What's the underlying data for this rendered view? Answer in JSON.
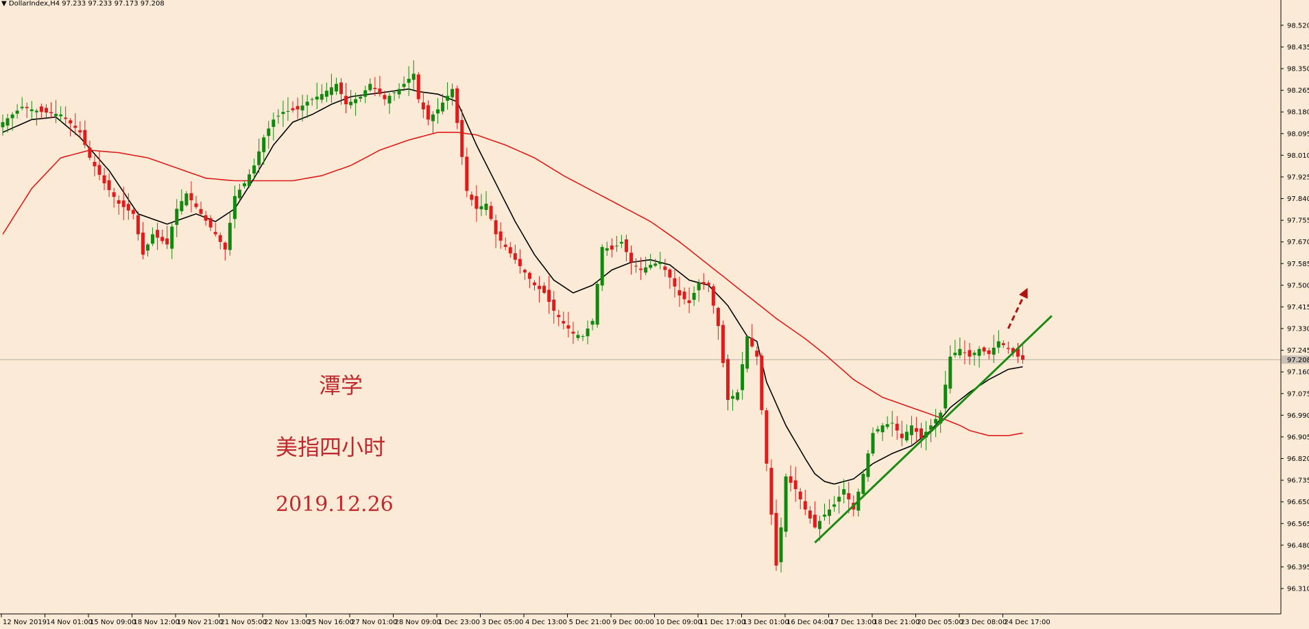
{
  "header": {
    "symbol_line": "▼ DollarIndex,H4  97.233 97.233 97.173 97.208"
  },
  "annotations": {
    "author": "潭学",
    "subtitle": "美指四小时",
    "date": "2019.12.26"
  },
  "colors": {
    "background": "#fbebd6",
    "bull": "#11890f",
    "bear": "#e11b1b",
    "ma_fast": "#000000",
    "ma_slow": "#e01a1a",
    "trendline": "#1a8a12",
    "arrow": "#b01010",
    "annotation_text": "#c0282d"
  },
  "chart_data": {
    "type": "candlestick",
    "symbol": "DollarIndex",
    "timeframe": "H4",
    "current_price": "97.208",
    "y_ticks": [
      "98.520",
      "98.435",
      "98.350",
      "98.265",
      "98.180",
      "98.095",
      "98.010",
      "97.925",
      "97.840",
      "97.755",
      "97.670",
      "97.585",
      "97.500",
      "97.415",
      "97.330",
      "97.245",
      "97.160",
      "97.075",
      "96.990",
      "96.905",
      "96.820",
      "96.735",
      "96.650",
      "96.565",
      "96.480",
      "96.395",
      "96.310"
    ],
    "ylim": [
      96.31,
      98.56
    ],
    "x_ticks": [
      "12 Nov 2019",
      "14 Nov 01:00",
      "15 Nov 09:00",
      "18 Nov 12:00",
      "19 Nov 21:00",
      "21 Nov 05:00",
      "22 Nov 13:00",
      "25 Nov 16:00",
      "27 Nov 01:00",
      "28 Nov 09:00",
      "1 Dec 23:00",
      "3 Dec 05:00",
      "4 Dec 13:00",
      "5 Dec 21:00",
      "9 Dec 00:00",
      "10 Dec 09:00",
      "11 Dec 17:00",
      "13 Dec 01:00",
      "16 Dec 04:00",
      "17 Dec 13:00",
      "18 Dec 21:00",
      "20 Dec 05:00",
      "23 Dec 08:00",
      "24 Dec 17:00"
    ],
    "price_path": [
      [
        0,
        98.14
      ],
      [
        4,
        98.2
      ],
      [
        8,
        98.18
      ],
      [
        12,
        98.17
      ],
      [
        16,
        98.1
      ],
      [
        18,
        98.0
      ],
      [
        21,
        97.9
      ],
      [
        24,
        97.82
      ],
      [
        27,
        97.78
      ],
      [
        29,
        97.62
      ],
      [
        31,
        97.7
      ],
      [
        34,
        97.66
      ],
      [
        36,
        97.8
      ],
      [
        38,
        97.86
      ],
      [
        41,
        97.78
      ],
      [
        44,
        97.7
      ],
      [
        46,
        97.64
      ],
      [
        48,
        97.85
      ],
      [
        50,
        97.9
      ],
      [
        52,
        97.97
      ],
      [
        54,
        98.08
      ],
      [
        56,
        98.15
      ],
      [
        58,
        98.18
      ],
      [
        61,
        98.19
      ],
      [
        63,
        98.22
      ],
      [
        66,
        98.25
      ],
      [
        69,
        98.29
      ],
      [
        71,
        98.21
      ],
      [
        74,
        98.24
      ],
      [
        76,
        98.29
      ],
      [
        79,
        98.23
      ],
      [
        82,
        98.27
      ],
      [
        85,
        98.33
      ],
      [
        86,
        98.23
      ],
      [
        88,
        98.15
      ],
      [
        90,
        98.19
      ],
      [
        93,
        98.27
      ],
      [
        96,
        97.87
      ],
      [
        98,
        97.8
      ],
      [
        100,
        97.82
      ],
      [
        102,
        97.7
      ],
      [
        104,
        97.65
      ],
      [
        106,
        97.6
      ],
      [
        108,
        97.55
      ],
      [
        110,
        97.5
      ],
      [
        112,
        97.47
      ],
      [
        114,
        97.4
      ],
      [
        116,
        97.35
      ],
      [
        118,
        97.31
      ],
      [
        120,
        97.3
      ],
      [
        122,
        97.36
      ],
      [
        124,
        97.65
      ],
      [
        126,
        97.64
      ],
      [
        128,
        97.67
      ],
      [
        130,
        97.59
      ],
      [
        132,
        97.56
      ],
      [
        134,
        97.58
      ],
      [
        136,
        97.59
      ],
      [
        138,
        97.53
      ],
      [
        140,
        97.46
      ],
      [
        142,
        97.43
      ],
      [
        144,
        97.51
      ],
      [
        146,
        97.5
      ],
      [
        148,
        97.34
      ],
      [
        150,
        97.05
      ],
      [
        152,
        97.08
      ],
      [
        154,
        97.3
      ],
      [
        156,
        97.22
      ],
      [
        158,
        96.8
      ],
      [
        160,
        96.4
      ],
      [
        161,
        96.55
      ],
      [
        162,
        96.75
      ],
      [
        164,
        96.7
      ],
      [
        166,
        96.62
      ],
      [
        168,
        96.55
      ],
      [
        170,
        96.6
      ],
      [
        172,
        96.64
      ],
      [
        174,
        96.7
      ],
      [
        176,
        96.62
      ],
      [
        178,
        96.76
      ],
      [
        180,
        96.92
      ],
      [
        182,
        96.95
      ],
      [
        184,
        96.96
      ],
      [
        186,
        96.9
      ],
      [
        188,
        96.95
      ],
      [
        190,
        96.9
      ],
      [
        192,
        96.95
      ],
      [
        194,
        97.0
      ],
      [
        196,
        97.22
      ],
      [
        198,
        97.25
      ],
      [
        200,
        97.22
      ],
      [
        202,
        97.25
      ],
      [
        204,
        97.23
      ],
      [
        206,
        97.28
      ],
      [
        208,
        97.25
      ],
      [
        210,
        97.22
      ],
      [
        211,
        97.208
      ]
    ],
    "ma_fast_path": [
      [
        0,
        98.1
      ],
      [
        6,
        98.15
      ],
      [
        11,
        98.16
      ],
      [
        16,
        98.08
      ],
      [
        22,
        97.95
      ],
      [
        28,
        97.78
      ],
      [
        34,
        97.74
      ],
      [
        40,
        97.78
      ],
      [
        44,
        97.75
      ],
      [
        48,
        97.8
      ],
      [
        52,
        97.92
      ],
      [
        56,
        98.05
      ],
      [
        60,
        98.14
      ],
      [
        64,
        98.17
      ],
      [
        68,
        98.21
      ],
      [
        72,
        98.24
      ],
      [
        76,
        98.25
      ],
      [
        80,
        98.26
      ],
      [
        84,
        98.27
      ],
      [
        86,
        98.26
      ],
      [
        90,
        98.25
      ],
      [
        94,
        98.22
      ],
      [
        98,
        98.05
      ],
      [
        102,
        97.9
      ],
      [
        106,
        97.75
      ],
      [
        110,
        97.62
      ],
      [
        114,
        97.52
      ],
      [
        118,
        97.47
      ],
      [
        122,
        97.5
      ],
      [
        126,
        97.56
      ],
      [
        130,
        97.59
      ],
      [
        134,
        97.6
      ],
      [
        138,
        97.58
      ],
      [
        142,
        97.52
      ],
      [
        146,
        97.5
      ],
      [
        150,
        97.42
      ],
      [
        154,
        97.3
      ],
      [
        156,
        97.28
      ],
      [
        158,
        97.12
      ],
      [
        162,
        96.95
      ],
      [
        166,
        96.82
      ],
      [
        168,
        96.76
      ],
      [
        170,
        96.73
      ],
      [
        172,
        96.72
      ],
      [
        174,
        96.73
      ],
      [
        176,
        96.74
      ],
      [
        180,
        96.8
      ],
      [
        184,
        96.84
      ],
      [
        188,
        96.87
      ],
      [
        192,
        96.93
      ],
      [
        196,
        97.02
      ],
      [
        200,
        97.08
      ],
      [
        204,
        97.13
      ],
      [
        208,
        97.17
      ],
      [
        211,
        97.18
      ]
    ],
    "ma_slow_path": [
      [
        0,
        97.7
      ],
      [
        6,
        97.88
      ],
      [
        12,
        98.0
      ],
      [
        18,
        98.03
      ],
      [
        24,
        98.02
      ],
      [
        30,
        98.0
      ],
      [
        36,
        97.96
      ],
      [
        42,
        97.92
      ],
      [
        48,
        97.91
      ],
      [
        54,
        97.91
      ],
      [
        60,
        97.91
      ],
      [
        66,
        97.93
      ],
      [
        72,
        97.97
      ],
      [
        78,
        98.03
      ],
      [
        84,
        98.07
      ],
      [
        90,
        98.1
      ],
      [
        94,
        98.1
      ],
      [
        98,
        98.09
      ],
      [
        104,
        98.05
      ],
      [
        110,
        98.0
      ],
      [
        116,
        97.93
      ],
      [
        122,
        97.87
      ],
      [
        128,
        97.81
      ],
      [
        134,
        97.75
      ],
      [
        140,
        97.67
      ],
      [
        146,
        97.58
      ],
      [
        150,
        97.52
      ],
      [
        156,
        97.43
      ],
      [
        160,
        97.37
      ],
      [
        166,
        97.29
      ],
      [
        170,
        97.23
      ],
      [
        176,
        97.13
      ],
      [
        182,
        97.06
      ],
      [
        188,
        97.02
      ],
      [
        194,
        96.98
      ],
      [
        198,
        96.95
      ],
      [
        200,
        96.93
      ],
      [
        204,
        96.91
      ],
      [
        208,
        96.91
      ],
      [
        211,
        96.92
      ]
    ],
    "trendline": [
      [
        168,
        96.49
      ],
      [
        217,
        97.38
      ]
    ],
    "projection_arrow": [
      [
        208,
        97.33
      ],
      [
        212,
        97.49
      ]
    ],
    "current_price_line": 97.208
  }
}
